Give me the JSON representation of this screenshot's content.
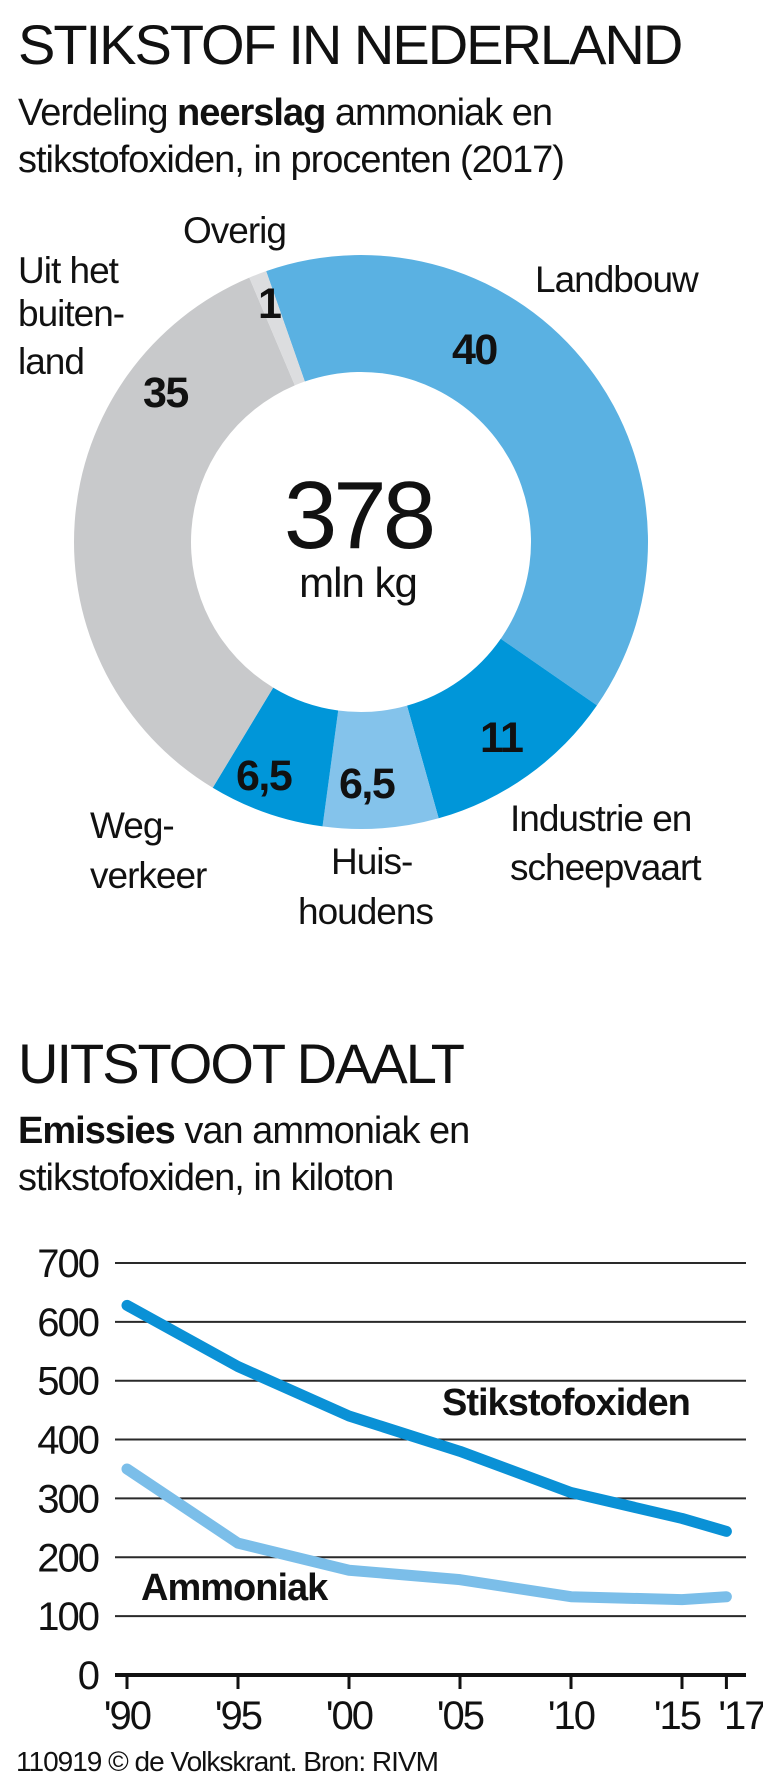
{
  "donut_section": {
    "title": "STIKSTOF IN NEDERLAND",
    "subtitle_pre": "Verdeling ",
    "subtitle_bold": "neerslag",
    "subtitle_post": " ammoniak en",
    "subtitle_line2": "stikstofoxiden, in procenten (2017)",
    "center_value": "378",
    "center_unit": "mln kg",
    "labels": {
      "overig": "Overig",
      "buitenland_1": "Uit het",
      "buitenland_2": "buiten-",
      "buitenland_3": "land",
      "landbouw": "Landbouw",
      "industrie_1": "Industrie en",
      "industrie_2": "scheepvaart",
      "huishoudens_1": "Huis-",
      "huishoudens_2": "houdens",
      "wegverkeer_1": "Weg-",
      "wegverkeer_2": "verkeer"
    },
    "values_display": {
      "landbouw": "40",
      "industrie": "11",
      "huishoudens": "6,5",
      "wegverkeer": "6,5",
      "buitenland": "35",
      "overig": "1"
    }
  },
  "line_section": {
    "title": "UITSTOOT DAALT",
    "subtitle_bold": "Emissies",
    "subtitle_post": " van ammoniak en",
    "subtitle_line2": "stikstofoxiden, in kiloton",
    "series_labels": {
      "nox": "Stikstofoxiden",
      "nh3": "Ammoniak"
    },
    "y_ticks": [
      "700",
      "600",
      "500",
      "400",
      "300",
      "200",
      "100",
      "0"
    ],
    "x_ticks": [
      "'90",
      "'95",
      "'00",
      "'05",
      "'10",
      "'15",
      "'17"
    ]
  },
  "footer": "110919 © de Volkskrant. Bron: RIVM",
  "colors": {
    "landbouw": "#5AB1E2",
    "industrie": "#0096D9",
    "huishoudens": "#84C3EB",
    "wegverkeer": "#0096D9",
    "buitenland": "#C8C9CB",
    "overig": "#DCDDDF",
    "nox_line": "#0A91D6",
    "nh3_line": "#7BBEE9"
  },
  "chart_data": [
    {
      "type": "pie",
      "title": "STIKSTOF IN NEDERLAND",
      "subtitle": "Verdeling neerslag ammoniak en stikstofoxiden, in procenten (2017)",
      "donut": true,
      "center_label": "378 mln kg",
      "categories": [
        "Landbouw",
        "Industrie en scheepvaart",
        "Huishoudens",
        "Wegverkeer",
        "Uit het buitenland",
        "Overig"
      ],
      "values": [
        40,
        11,
        6.5,
        6.5,
        35,
        1
      ],
      "unit": "%"
    },
    {
      "type": "line",
      "title": "UITSTOOT DAALT",
      "subtitle": "Emissies van ammoniak en stikstofoxiden, in kiloton",
      "x": [
        1990,
        1995,
        2000,
        2005,
        2010,
        2015,
        2017
      ],
      "x_tick_labels": [
        "'90",
        "'95",
        "'00",
        "'05",
        "'10",
        "'15",
        "'17"
      ],
      "series": [
        {
          "name": "Stikstofoxiden",
          "values": [
            628,
            524,
            440,
            380,
            310,
            266,
            244
          ]
        },
        {
          "name": "Ammoniak",
          "values": [
            350,
            224,
            178,
            162,
            133,
            128,
            133
          ]
        }
      ],
      "xlabel": "",
      "ylabel": "kiloton",
      "ylim": [
        0,
        700
      ],
      "y_ticks": [
        0,
        100,
        200,
        300,
        400,
        500,
        600,
        700
      ],
      "grid": true,
      "legend": "inline labels"
    }
  ]
}
